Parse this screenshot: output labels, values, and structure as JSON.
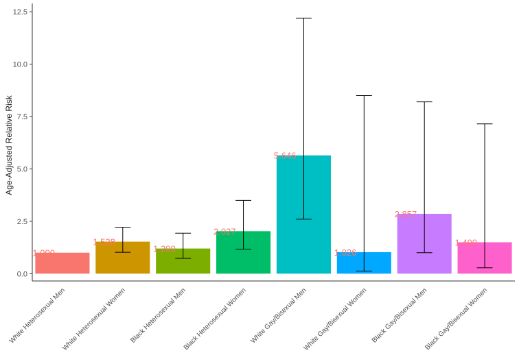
{
  "chart_data": {
    "type": "bar",
    "title": "",
    "xlabel": "",
    "ylabel": "Age-Adjusted Relative Risk",
    "ylim": [
      -0.35,
      12.9
    ],
    "yticks": [
      0.0,
      2.5,
      5.0,
      7.5,
      10.0,
      12.5
    ],
    "ytick_labels": [
      "0.0",
      "2.5",
      "5.0",
      "7.5",
      "10.0",
      "12.5"
    ],
    "grid": false,
    "legend": "none",
    "categories": [
      "White Heterosexual Men",
      "White Heterosexual Women",
      "Black Heterosexual Men",
      "Black Heterosexual Women",
      "White Gay/Bisexual Men",
      "White Gay/Bisexual Women",
      "Black Gay/Bisexual Men",
      "Black Gay/Bisexual Women"
    ],
    "values": [
      1.0,
      1.528,
      1.2,
      2.027,
      5.646,
      1.026,
      2.857,
      1.499
    ],
    "value_labels": [
      "1.000",
      "1.528",
      "1.200",
      "2.027",
      "5.646",
      "1.026",
      "2.857",
      "1.499"
    ],
    "error_lower": [
      null,
      1.02,
      0.73,
      1.17,
      2.6,
      0.12,
      1.0,
      0.28
    ],
    "error_upper": [
      null,
      2.22,
      1.93,
      3.5,
      12.2,
      8.5,
      8.2,
      7.15
    ],
    "colors": [
      "#F8766D",
      "#CD9600",
      "#7CAE00",
      "#00BE67",
      "#00BFC4",
      "#00A9FF",
      "#C77CFF",
      "#FF61CC"
    ],
    "label_color": "#F8766D"
  }
}
